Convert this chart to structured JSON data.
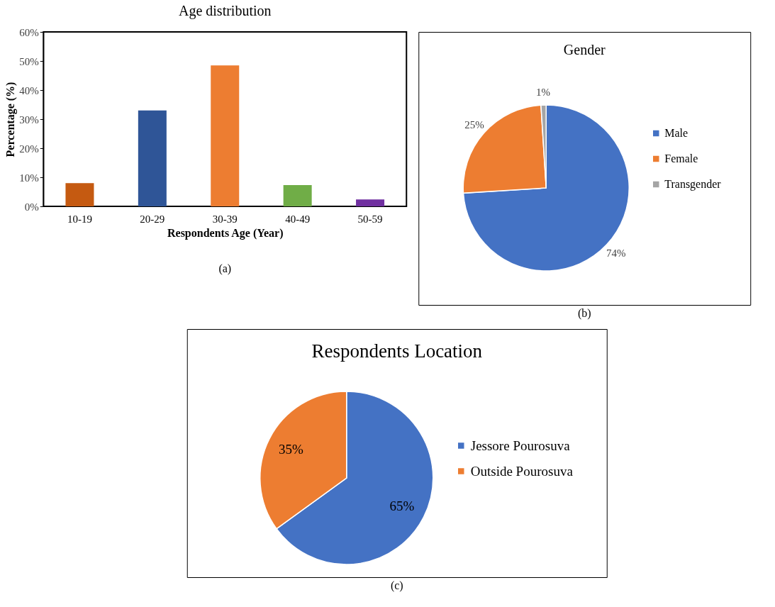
{
  "chart_data": [
    {
      "type": "bar",
      "title": "Age distribution",
      "xlabel": "Respondents Age (Year)",
      "ylabel": "Percentage (%)",
      "categories": [
        "10-19",
        "20-29",
        "30-39",
        "40-49",
        "50-59"
      ],
      "values": [
        8,
        33,
        48.5,
        7.3,
        2.4
      ],
      "colors": [
        "#c55a11",
        "#2f5597",
        "#ed7d31",
        "#70ad47",
        "#7030a0"
      ],
      "ylim": [
        0,
        60
      ],
      "yticks": [
        {
          "value": 0,
          "label": "0%"
        },
        {
          "value": 10,
          "label": "10%"
        },
        {
          "value": 20,
          "label": "20%"
        },
        {
          "value": 30,
          "label": "30%"
        },
        {
          "value": 40,
          "label": "40%"
        },
        {
          "value": 50,
          "label": "50%"
        },
        {
          "value": 60,
          "label": "60%"
        }
      ],
      "grid": false,
      "annotations": [
        "(a)"
      ]
    },
    {
      "type": "pie",
      "title": "Gender",
      "categories": [
        "Male",
        "Female",
        "Transgender"
      ],
      "values": [
        74,
        25,
        1
      ],
      "colors": [
        "#4472c4",
        "#ed7d31",
        "#a5a5a5"
      ],
      "value_labels": [
        "74%",
        "25%",
        "1%"
      ],
      "legend": "right",
      "annotations": [
        "(b)"
      ]
    },
    {
      "type": "pie",
      "title": "Respondents Location",
      "categories": [
        "Jessore  Pourosuva",
        "Outside Pourosuva"
      ],
      "values": [
        65,
        35
      ],
      "colors": [
        "#4472c4",
        "#ed7d31"
      ],
      "value_labels": [
        "65%",
        "35%"
      ],
      "legend": "right",
      "annotations": [
        "(c)"
      ]
    }
  ]
}
